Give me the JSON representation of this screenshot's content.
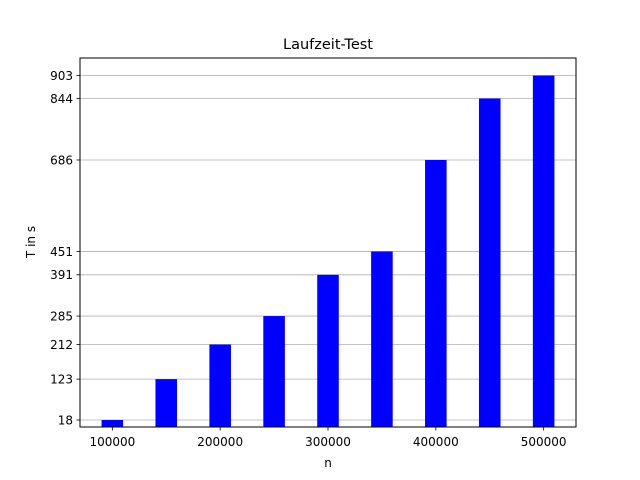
{
  "chart_data": {
    "type": "bar",
    "title": "Laufzeit-Test",
    "xlabel": "n",
    "ylabel": "T in s",
    "x": [
      100000,
      150000,
      200000,
      250000,
      300000,
      350000,
      400000,
      450000,
      500000
    ],
    "values": [
      18,
      123,
      212,
      285,
      391,
      451,
      686,
      844,
      903
    ],
    "xticks": [
      100000,
      200000,
      300000,
      400000,
      500000
    ],
    "yticks": [
      18,
      123,
      212,
      285,
      391,
      451,
      686,
      844,
      903
    ],
    "xlim": [
      70000,
      530000
    ],
    "ylim": [
      0,
      948
    ],
    "bar_width": 20000,
    "bar_color": "#0000ff",
    "grid": "y"
  }
}
